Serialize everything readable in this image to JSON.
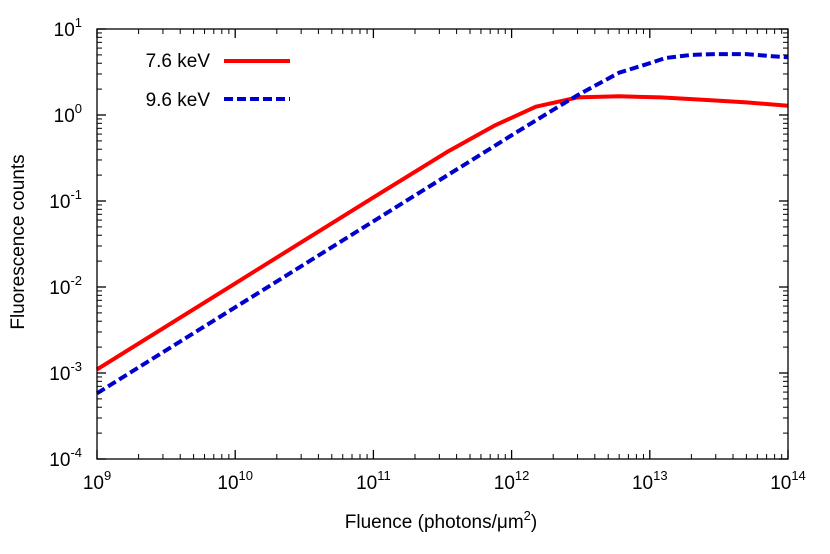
{
  "chart_data": {
    "type": "line",
    "xlabel": {
      "base": "Fluence (photons/μm",
      "sup": "2",
      "end": ")"
    },
    "ylabel": "Fluorescence counts",
    "xscale": "log",
    "yscale": "log",
    "xlim": [
      1000000000.0,
      100000000000000.0
    ],
    "ylim": [
      0.0001,
      10
    ],
    "grid": false,
    "legend_position": "top-left",
    "x_ticks": [
      {
        "base": "10",
        "exp": "9"
      },
      {
        "base": "10",
        "exp": "10"
      },
      {
        "base": "10",
        "exp": "11"
      },
      {
        "base": "10",
        "exp": "12"
      },
      {
        "base": "10",
        "exp": "13"
      },
      {
        "base": "10",
        "exp": "14"
      }
    ],
    "y_ticks": [
      {
        "base": "10",
        "exp": "-4"
      },
      {
        "base": "10",
        "exp": "-3"
      },
      {
        "base": "10",
        "exp": "-2"
      },
      {
        "base": "10",
        "exp": "-1"
      },
      {
        "base": "10",
        "exp": "0",
        "text": "10",
        "tail": "0"
      },
      {
        "base": "10",
        "exp": "1"
      }
    ],
    "series": [
      {
        "name": "7.6 keV",
        "color": "#ff0000",
        "dash": "solid",
        "x": [
          1000000000.0,
          10000000000.0,
          100000000000.0,
          350000000000.0,
          750000000000.0,
          1500000000000.0,
          3000000000000.0,
          6000000000000.0,
          12000000000000.0,
          25000000000000.0,
          50000000000000.0,
          100000000000000.0
        ],
        "y": [
          0.0011,
          0.011,
          0.11,
          0.38,
          0.75,
          1.25,
          1.6,
          1.65,
          1.6,
          1.5,
          1.4,
          1.28
        ]
      },
      {
        "name": "9.6 keV",
        "color": "#0000cc",
        "dash": "dashed",
        "x": [
          1000000000.0,
          10000000000.0,
          100000000000.0,
          1000000000000.0,
          2000000000000.0,
          3000000000000.0,
          6000000000000.0,
          10000000000000.0,
          13000000000000.0,
          20000000000000.0,
          30000000000000.0,
          50000000000000.0,
          80000000000000.0,
          100000000000000.0
        ],
        "y": [
          0.00058,
          0.0058,
          0.058,
          0.58,
          1.15,
          1.7,
          3.1,
          4.0,
          4.6,
          5.0,
          5.1,
          5.1,
          4.8,
          4.7
        ]
      }
    ]
  }
}
